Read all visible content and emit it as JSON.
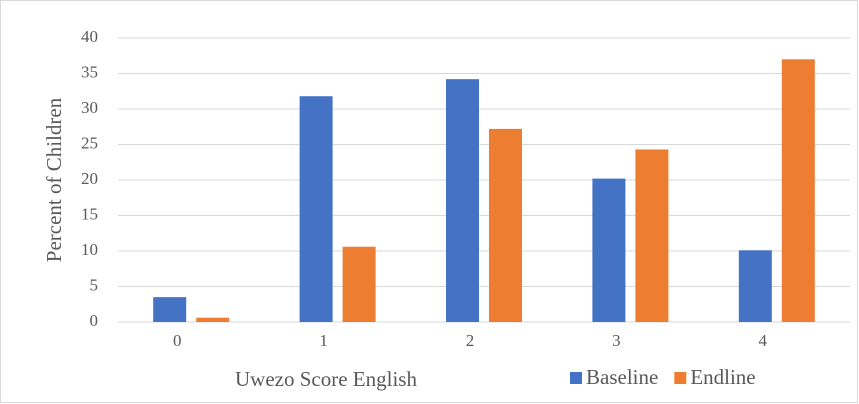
{
  "chart_data": {
    "type": "bar",
    "x_label": "Uwezo Score English",
    "y_label": "Percent of Children",
    "categories": [
      "0",
      "1",
      "2",
      "3",
      "4"
    ],
    "series": [
      {
        "name": "Baseline",
        "color": "#4472c4",
        "values": [
          3.5,
          31.8,
          34.2,
          20.2,
          10.1
        ]
      },
      {
        "name": "Endline",
        "color": "#ed7d31",
        "values": [
          0.6,
          10.6,
          27.2,
          24.3,
          37.0
        ]
      }
    ],
    "ylim": [
      0,
      40
    ],
    "yticks": [
      0,
      5,
      10,
      15,
      20,
      25,
      30,
      35,
      40
    ],
    "grid": true,
    "legend": "bottom-right"
  }
}
